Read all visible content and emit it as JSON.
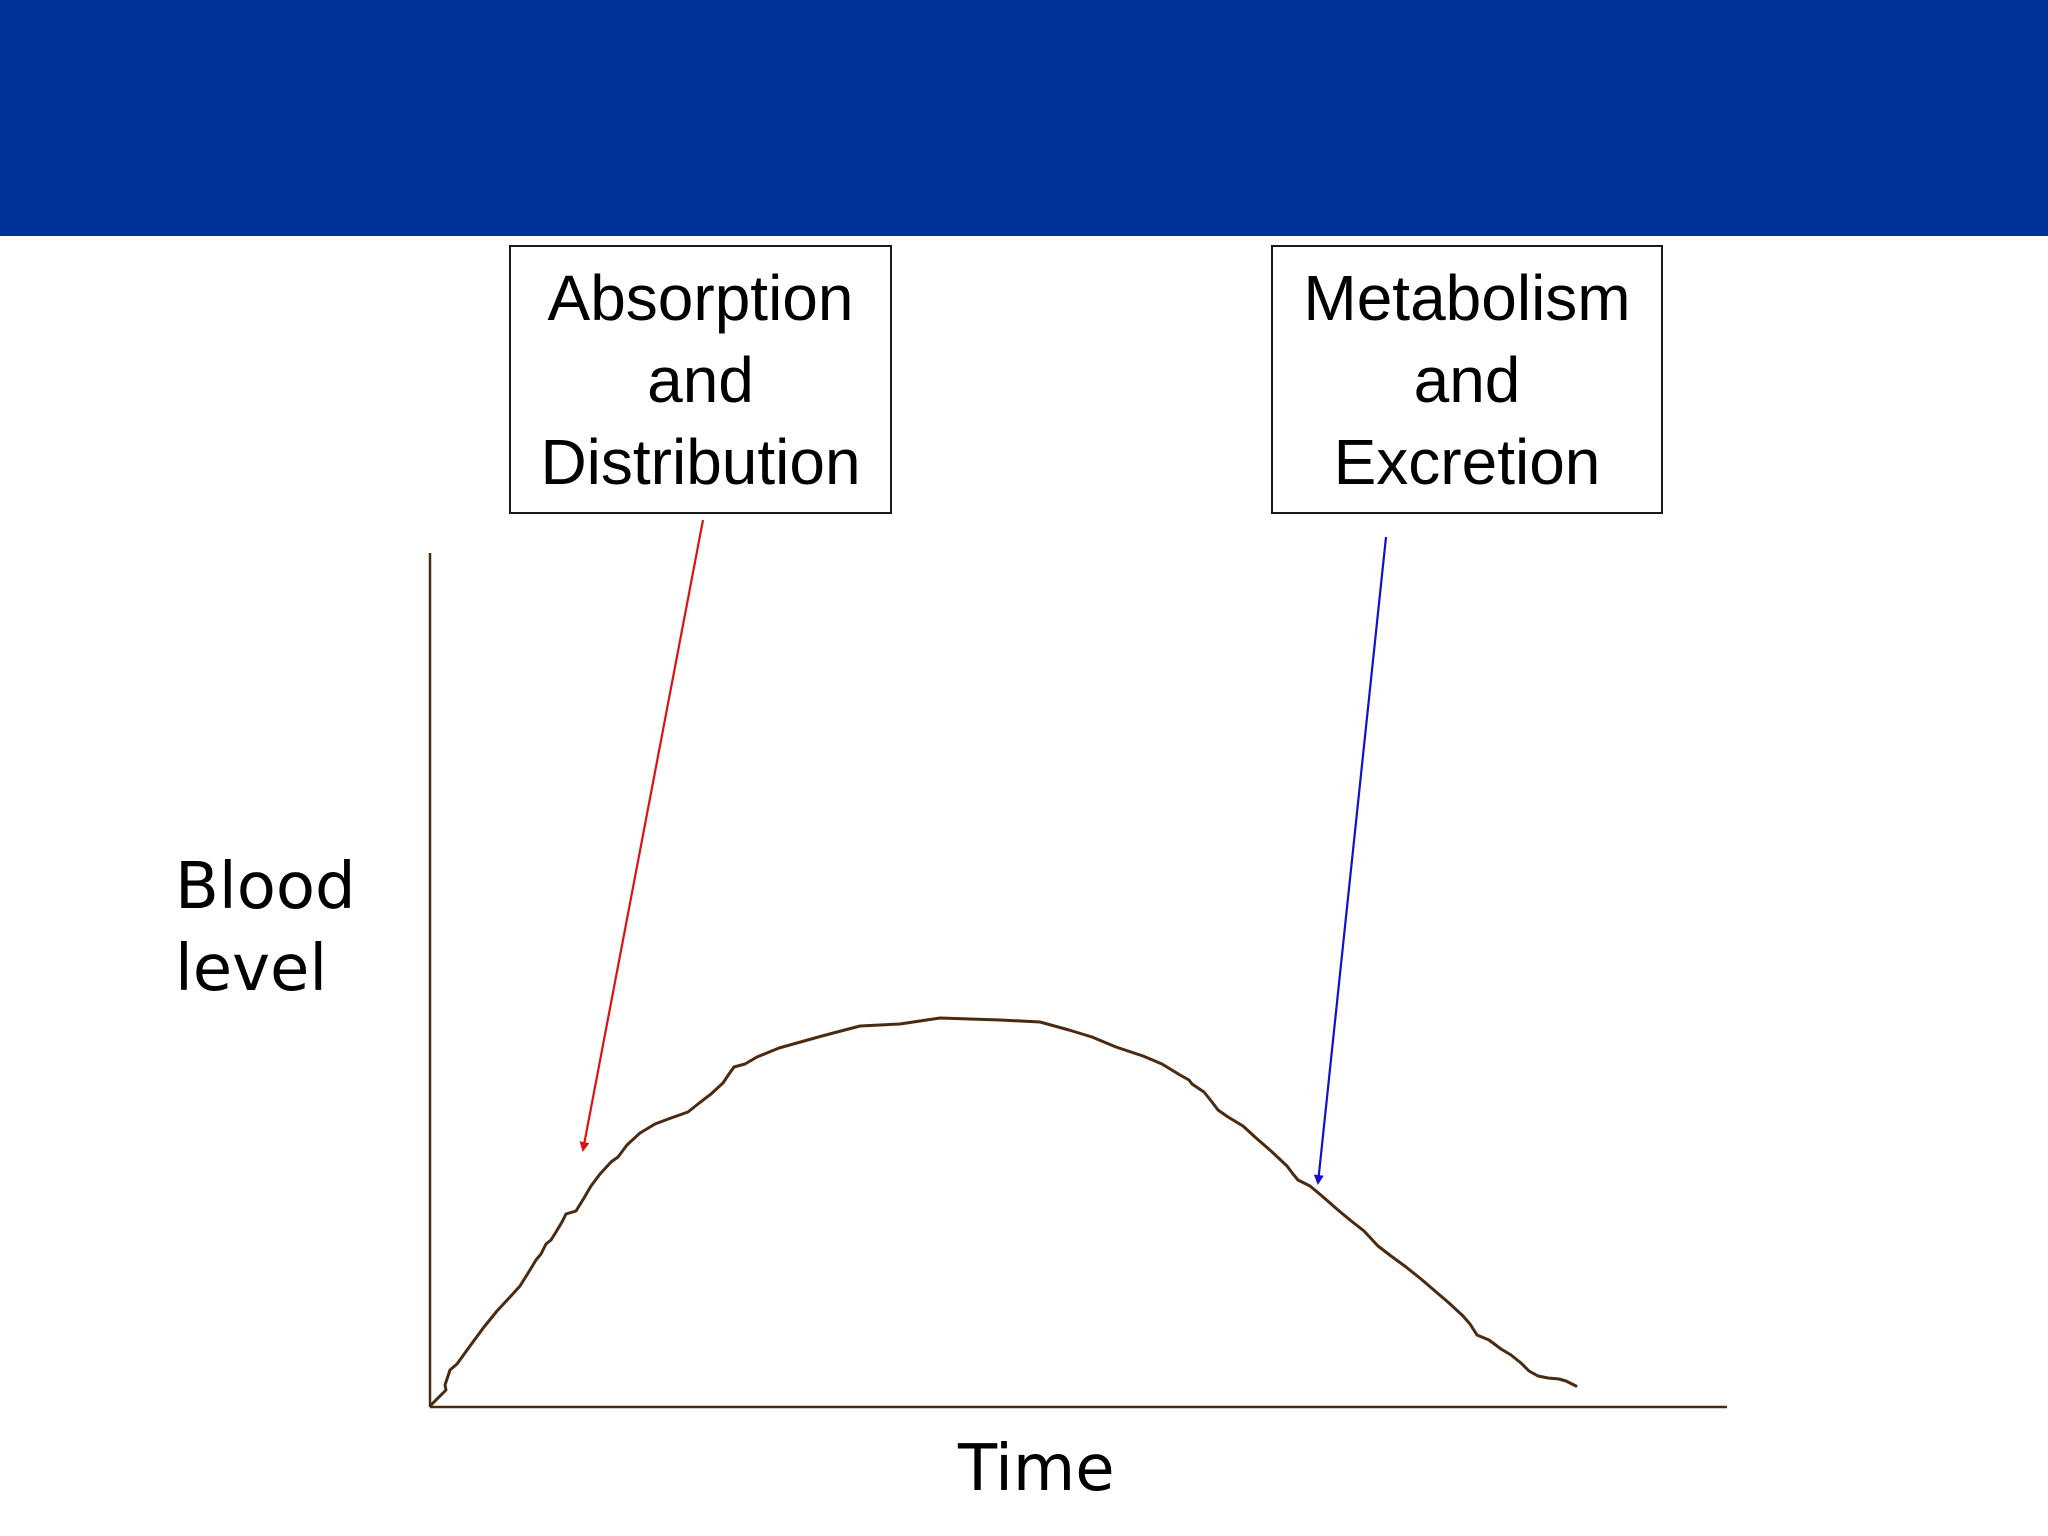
{
  "colors": {
    "header": "#003399",
    "curve": "#4a2a10",
    "axes": "#4a2a10",
    "absorption_arrow": "#dd1111",
    "metabolism_arrow": "#1111cc"
  },
  "boxes": {
    "absorption": {
      "line1": "Absorption",
      "line2": "and",
      "line3": "Distribution"
    },
    "metabolism": {
      "line1": "Metabolism",
      "line2": "and",
      "line3": "Excretion"
    }
  },
  "axes": {
    "ylabel_line1": "Blood",
    "ylabel_line2": "level",
    "xlabel": "Time"
  }
}
